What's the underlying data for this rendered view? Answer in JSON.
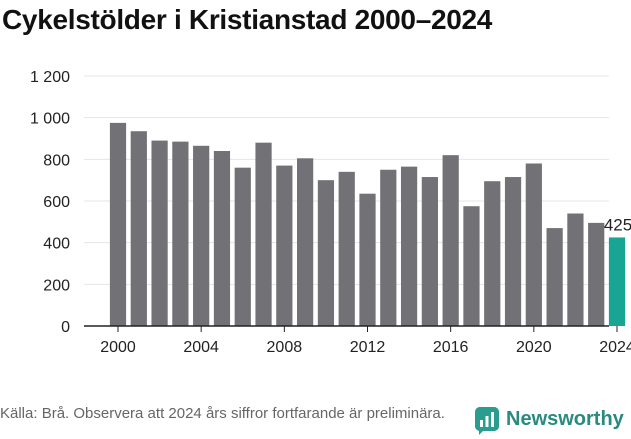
{
  "title": "Cykelstölder i Kristianstad 2000–2024",
  "source": "Källa: Brå. Observera att 2024 års siffror fortfarande är preliminära.",
  "logo": {
    "name": "Newsworthy",
    "icon": "newsworthy-chat-bars-icon"
  },
  "colors": {
    "bar": "#727176",
    "highlight": "#19a594",
    "grid": "#e4e4e4",
    "axis": "#222222"
  },
  "chart_data": {
    "type": "bar",
    "title": "Cykelstölder i Kristianstad 2000–2024",
    "xlabel": "",
    "ylabel": "",
    "ylim": [
      0,
      1200
    ],
    "yticks": [
      0,
      200,
      400,
      600,
      800,
      1000,
      1200
    ],
    "ytick_labels": [
      "0",
      "200",
      "400",
      "600",
      "800",
      "1 000",
      "1 200"
    ],
    "xticks": [
      2000,
      2004,
      2008,
      2012,
      2016,
      2020,
      2024
    ],
    "xtick_labels": [
      "2000",
      "2004",
      "2008",
      "2012",
      "2016",
      "2020",
      "2024"
    ],
    "grid": true,
    "categories": [
      2000,
      2001,
      2002,
      2003,
      2004,
      2005,
      2006,
      2007,
      2008,
      2009,
      2010,
      2011,
      2012,
      2013,
      2014,
      2015,
      2016,
      2017,
      2018,
      2019,
      2020,
      2021,
      2022,
      2023,
      2024
    ],
    "values": [
      975,
      935,
      890,
      885,
      865,
      840,
      760,
      880,
      770,
      805,
      700,
      740,
      635,
      750,
      765,
      715,
      820,
      575,
      695,
      715,
      780,
      470,
      540,
      495,
      425
    ],
    "highlight_index": 24,
    "annotations": [
      {
        "category": 2024,
        "text": "425"
      }
    ]
  }
}
